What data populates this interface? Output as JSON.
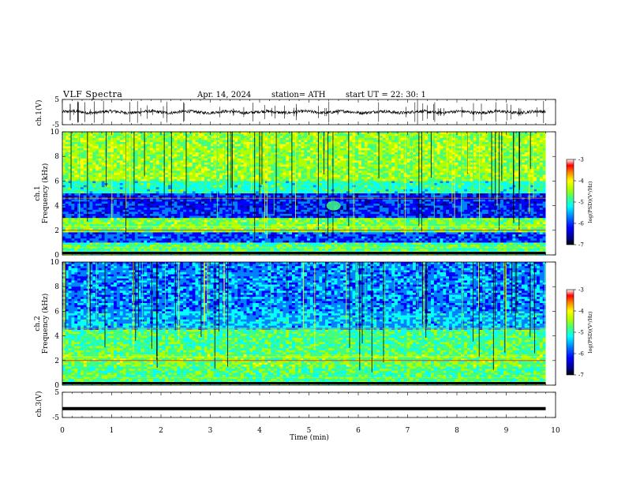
{
  "header": {
    "title": "VLF  Spectra",
    "date": "Apr. 14, 2024",
    "station": "station= ATH",
    "start": "start  UT  =    22: 30: 1"
  },
  "colors": {
    "spectrogram_palette": [
      "#000000",
      "#00008f",
      "#0000ff",
      "#0080ff",
      "#00ffff",
      "#40ff80",
      "#b0ff00",
      "#ffff00",
      "#ff8000",
      "#ff0000",
      "#ffffff"
    ]
  },
  "chart_data": [
    {
      "type": "line",
      "id": "ch1-waveform",
      "ylabel": "ch.1(V)",
      "ylim": [
        -5,
        5
      ],
      "yticks": [
        "5",
        "-5"
      ],
      "xlim": [
        0,
        10
      ],
      "baseline": 0,
      "approx_amplitude": 1
    },
    {
      "type": "heatmap",
      "id": "ch1-spectrogram",
      "ylabel": "ch.1\nFrequency  (kHz)",
      "ylim": [
        0,
        10
      ],
      "yticks": [
        "0",
        "2",
        "4",
        "6",
        "8",
        "10"
      ],
      "xlim": [
        0,
        10
      ],
      "colorbar": {
        "label": "log(PSD)(V²/Hz)",
        "range": [
          -7,
          -3
        ],
        "ticks": [
          "-3",
          "-4",
          "-5",
          "-6",
          "-7"
        ]
      }
    },
    {
      "type": "heatmap",
      "id": "ch2-spectrogram",
      "ylabel": "ch.2\nFrequency  (kHz)",
      "ylim": [
        0,
        10
      ],
      "yticks": [
        "0",
        "2",
        "4",
        "6",
        "8",
        "10"
      ],
      "xlim": [
        0,
        10
      ],
      "colorbar": {
        "label": "log(PSD)(V²/Hz)",
        "range": [
          -7,
          -3
        ],
        "ticks": [
          "-3",
          "-4",
          "-5",
          "-6",
          "-7"
        ]
      }
    },
    {
      "type": "line",
      "id": "ch3-waveform",
      "ylabel": "ch.3(V)",
      "ylim": [
        -5,
        5
      ],
      "yticks": [
        "5",
        "-5"
      ],
      "xlim": [
        0,
        10
      ],
      "baseline": -1.5
    }
  ],
  "xaxis": {
    "label": "Time  (min)",
    "ticks": [
      "0",
      "1",
      "2",
      "3",
      "4",
      "5",
      "6",
      "7",
      "8",
      "9",
      "10"
    ],
    "data_end": 9.8
  }
}
